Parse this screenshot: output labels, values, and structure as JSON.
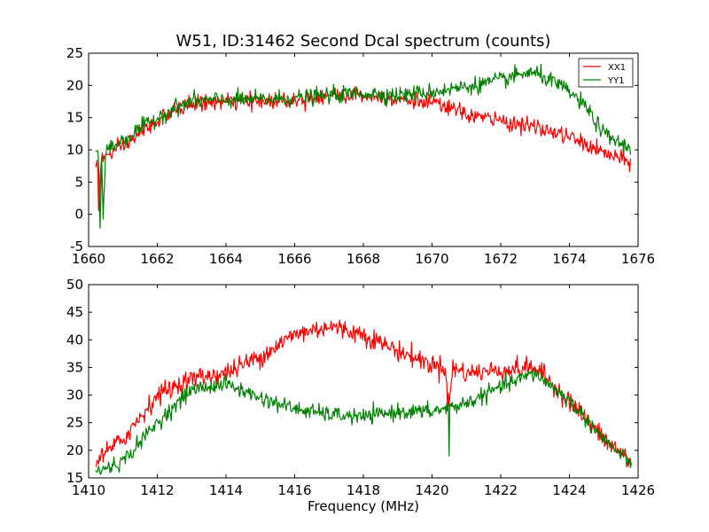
{
  "chart_data": [
    {
      "type": "line",
      "title": "W51, ID:31462 Second Dcal spectrum (counts)",
      "xlabel": "",
      "ylabel": "",
      "xlim": [
        1660,
        1676
      ],
      "ylim": [
        -5,
        25
      ],
      "xticks": [
        1660,
        1662,
        1664,
        1666,
        1668,
        1670,
        1672,
        1674,
        1676
      ],
      "yticks": [
        -5,
        0,
        5,
        10,
        15,
        20,
        25
      ],
      "grid": false,
      "legend": "top-right",
      "noise": [
        0.9,
        0.9
      ],
      "series": [
        {
          "name": "XX1",
          "color": "#ff0000",
          "x": [
            1660.2,
            1660.25,
            1660.3,
            1660.35,
            1660.4,
            1660.5,
            1661,
            1662,
            1662.5,
            1663,
            1664,
            1665,
            1666,
            1667,
            1668,
            1669,
            1670,
            1670.5,
            1671,
            1672,
            1673,
            1674,
            1675,
            1675.8
          ],
          "y": [
            7.5,
            9,
            -0.5,
            8,
            8.5,
            9.0,
            10.5,
            14.5,
            16,
            17.2,
            17.5,
            17.5,
            17.8,
            18.5,
            18.5,
            18.0,
            17.2,
            16.5,
            15.5,
            14.5,
            13.5,
            12,
            9.5,
            8.0
          ]
        },
        {
          "name": "YY1",
          "color": "#008000",
          "x": [
            1660.2,
            1660.3,
            1660.33,
            1660.38,
            1660.42,
            1660.5,
            1661,
            1662,
            1662.5,
            1663,
            1664,
            1665,
            1666,
            1667,
            1668,
            1669,
            1670,
            1671,
            1672,
            1672.8,
            1673.2,
            1674,
            1674.5,
            1675,
            1675.8
          ],
          "y": [
            10,
            9,
            -3.0,
            8.5,
            -1.0,
            10,
            11.5,
            15,
            16.5,
            17.5,
            17.8,
            17.8,
            18.0,
            18.5,
            18.8,
            18.5,
            19.0,
            19.8,
            20.8,
            22.0,
            21.5,
            19.0,
            16.5,
            12.5,
            10.0
          ]
        }
      ]
    },
    {
      "type": "line",
      "title": "",
      "xlabel": "Frequency (MHz)",
      "ylabel": "",
      "xlim": [
        1410,
        1426
      ],
      "ylim": [
        15,
        50
      ],
      "xticks": [
        1410,
        1412,
        1414,
        1416,
        1418,
        1420,
        1422,
        1424,
        1426
      ],
      "yticks": [
        15,
        20,
        25,
        30,
        35,
        40,
        45,
        50
      ],
      "grid": false,
      "legend": "none",
      "noise": [
        1.3,
        1.0
      ],
      "series": [
        {
          "name": "XX1",
          "color": "#ff0000",
          "x": [
            1410.2,
            1411,
            1412,
            1413,
            1414,
            1415,
            1416,
            1417,
            1418,
            1419,
            1420,
            1420.4,
            1420.5,
            1420.6,
            1421,
            1422,
            1423,
            1424,
            1425,
            1425.8
          ],
          "y": [
            18,
            22,
            30,
            33,
            34,
            37,
            41,
            42.5,
            41,
            38,
            35.5,
            35,
            28,
            35,
            34,
            34.5,
            35,
            29,
            22,
            18
          ],
          "spikes": [
            [
              1420.45,
              27.5
            ]
          ]
        },
        {
          "name": "YY1",
          "color": "#008000",
          "x": [
            1410.2,
            1411,
            1412,
            1413,
            1414,
            1415,
            1416,
            1417,
            1418,
            1419,
            1420,
            1421,
            1422,
            1423,
            1424,
            1425,
            1425.8
          ],
          "y": [
            16,
            18,
            25,
            31,
            32,
            29.5,
            27.5,
            26.5,
            26,
            27,
            27,
            28.5,
            31.5,
            34,
            29,
            22,
            17.5
          ],
          "spikes": [
            [
              1420.5,
              19
            ]
          ]
        }
      ]
    }
  ]
}
